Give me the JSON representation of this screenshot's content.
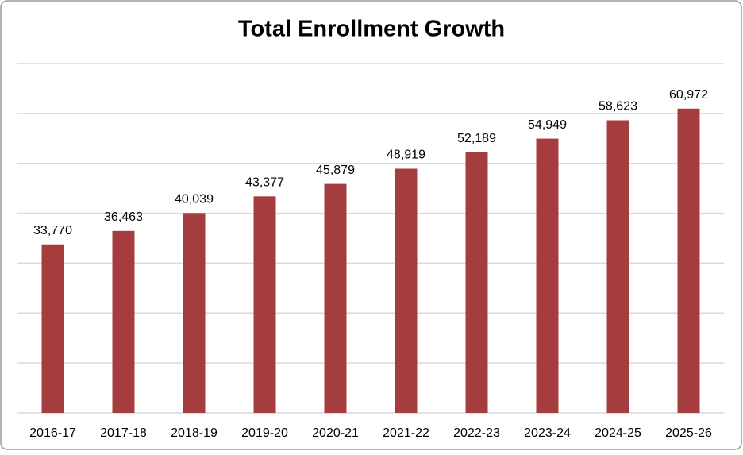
{
  "chart_data": {
    "type": "bar",
    "title": "Total Enrollment Growth",
    "categories": [
      "2016-17",
      "2017-18",
      "2018-19",
      "2019-20",
      "2020-21",
      "2021-22",
      "2022-23",
      "2023-24",
      "2024-25",
      "2025-26"
    ],
    "values": [
      33770,
      36463,
      40039,
      43377,
      45879,
      48919,
      52189,
      54949,
      58623,
      60972
    ],
    "value_labels": [
      "33,770",
      "36,463",
      "40,039",
      "43,377",
      "45,879",
      "48,919",
      "52,189",
      "54,949",
      "58,623",
      "60,972"
    ],
    "color": "#a53c3e",
    "ylim": [
      0,
      70000
    ],
    "yticks": [
      0,
      10000,
      20000,
      30000,
      40000,
      50000,
      60000,
      70000
    ],
    "grid": true
  }
}
